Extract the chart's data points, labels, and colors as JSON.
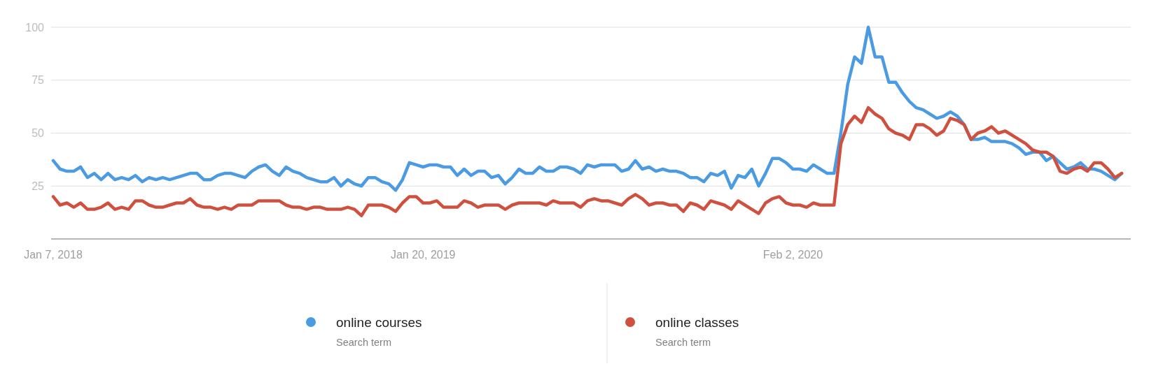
{
  "chart_data": {
    "type": "line",
    "categories": [
      "Jan 7, 2018",
      null,
      null,
      null,
      null,
      null,
      null,
      null,
      null,
      null,
      null,
      null,
      null,
      null,
      null,
      null,
      null,
      null,
      null,
      null,
      null,
      null,
      null,
      null,
      null,
      null,
      null,
      null,
      null,
      null,
      null,
      null,
      null,
      null,
      null,
      null,
      null,
      null,
      null,
      null,
      null,
      null,
      null,
      null,
      null,
      null,
      null,
      null,
      null,
      null,
      null,
      null,
      null,
      null,
      "Jan 20, 2019",
      null,
      null,
      null,
      null,
      null,
      null,
      null,
      null,
      null,
      null,
      null,
      null,
      null,
      null,
      null,
      null,
      null,
      null,
      null,
      null,
      null,
      null,
      null,
      null,
      null,
      null,
      null,
      null,
      null,
      null,
      null,
      null,
      null,
      null,
      null,
      null,
      null,
      null,
      null,
      null,
      null,
      null,
      null,
      null,
      null,
      null,
      null,
      null,
      null,
      null,
      null,
      null,
      null,
      "Feb 2, 2020",
      null,
      null,
      null,
      null,
      null,
      null,
      null,
      null,
      null,
      null,
      null,
      null,
      null,
      null,
      null,
      null,
      null,
      null,
      null,
      null,
      null,
      null,
      null,
      null,
      null,
      null,
      null,
      null,
      null,
      null,
      null,
      null,
      null,
      null,
      null,
      null,
      null,
      null,
      null,
      null,
      null,
      null,
      null,
      null,
      null,
      null,
      null,
      null
    ],
    "series": [
      {
        "name": "online courses",
        "color": "#4b9be3",
        "values": [
          37,
          33,
          32,
          32,
          34,
          29,
          31,
          28,
          31,
          28,
          29,
          28,
          30,
          27,
          29,
          28,
          29,
          28,
          29,
          30,
          31,
          31,
          28,
          28,
          30,
          31,
          31,
          30,
          29,
          32,
          34,
          35,
          32,
          30,
          34,
          32,
          31,
          29,
          28,
          27,
          27,
          29,
          25,
          28,
          26,
          25,
          29,
          29,
          27,
          26,
          23,
          28,
          36,
          35,
          34,
          35,
          35,
          34,
          34,
          30,
          33,
          30,
          32,
          32,
          29,
          30,
          26,
          29,
          33,
          31,
          31,
          34,
          32,
          32,
          34,
          34,
          33,
          31,
          35,
          34,
          35,
          35,
          35,
          32,
          33,
          37,
          33,
          34,
          32,
          33,
          32,
          32,
          31,
          29,
          29,
          27,
          31,
          30,
          32,
          24,
          30,
          29,
          33,
          25,
          31,
          38,
          38,
          36,
          33,
          33,
          32,
          35,
          33,
          31,
          31,
          50,
          73,
          86,
          83,
          100,
          86,
          86,
          74,
          74,
          69,
          65,
          62,
          61,
          59,
          57,
          58,
          60,
          58,
          54,
          47,
          47,
          48,
          46,
          46,
          46,
          45,
          43,
          40,
          41,
          41,
          37,
          39,
          36,
          33,
          34,
          36,
          33,
          33,
          32,
          30,
          28,
          31
        ]
      },
      {
        "name": "online classes",
        "color": "#d0503f",
        "values": [
          20,
          16,
          17,
          15,
          17,
          14,
          14,
          15,
          17,
          14,
          15,
          14,
          18,
          18,
          16,
          15,
          15,
          16,
          17,
          17,
          19,
          16,
          15,
          15,
          14,
          15,
          14,
          16,
          16,
          16,
          18,
          18,
          18,
          18,
          16,
          15,
          15,
          14,
          15,
          15,
          14,
          14,
          14,
          15,
          14,
          11,
          16,
          16,
          16,
          15,
          13,
          17,
          20,
          20,
          17,
          17,
          18,
          15,
          15,
          15,
          18,
          17,
          15,
          16,
          16,
          16,
          14,
          16,
          17,
          17,
          17,
          17,
          16,
          18,
          17,
          17,
          17,
          15,
          18,
          19,
          18,
          18,
          17,
          16,
          19,
          21,
          19,
          16,
          17,
          17,
          16,
          16,
          13,
          17,
          16,
          14,
          18,
          17,
          16,
          14,
          18,
          16,
          14,
          12,
          17,
          19,
          20,
          17,
          16,
          16,
          15,
          17,
          16,
          16,
          16,
          45,
          54,
          58,
          55,
          62,
          59,
          57,
          52,
          50,
          49,
          47,
          54,
          54,
          52,
          49,
          51,
          57,
          56,
          54,
          47,
          50,
          51,
          53,
          50,
          51,
          49,
          47,
          45,
          42,
          41,
          41,
          39,
          32,
          31,
          33,
          34,
          32,
          36,
          36,
          33,
          29,
          31
        ]
      }
    ],
    "ylim": [
      0,
      100
    ],
    "yticks": [
      25,
      50,
      75,
      100
    ],
    "grid": "y",
    "legend": "bottom",
    "annotations": [
      "Search term",
      "Search term"
    ]
  }
}
